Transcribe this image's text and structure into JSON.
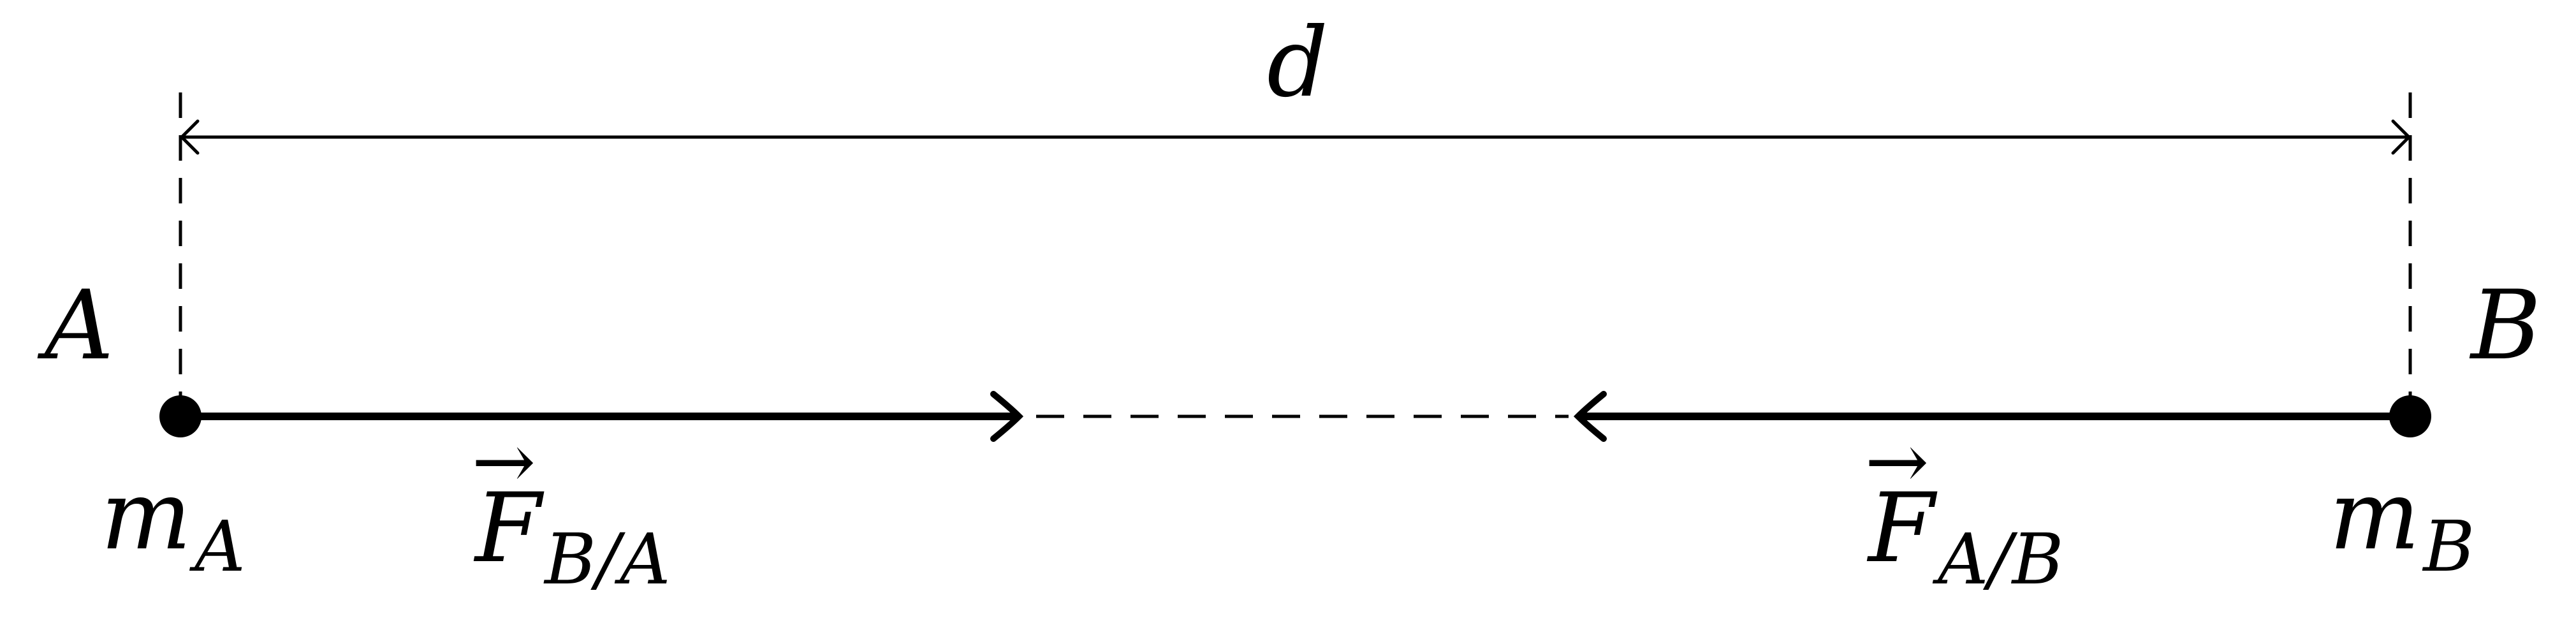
{
  "labels": {
    "distance": "d",
    "point_a": "A",
    "point_b": "B",
    "mass_a_base": "m",
    "mass_a_sub": "A",
    "mass_b_base": "m",
    "mass_b_sub": "B",
    "force_ba_base": "F",
    "force_ba_sub": "B/A",
    "force_ab_base": "F",
    "force_ab_sub": "A/B",
    "vector_arrow": "→"
  },
  "colors": {
    "ink": "#000000",
    "background": "#ffffff"
  }
}
